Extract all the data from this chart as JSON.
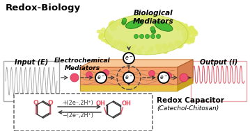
{
  "title": "Redox-Biology",
  "bio_mediators_label": "Biological\nMediators",
  "input_label": "Input (E)",
  "output_label": "Output (i)",
  "electrochem_label": "Electrochemical\nMediators",
  "redox_cap_line1": "Redox Capacitor",
  "redox_cap_line2": "(Catechol-Chitosan)",
  "reaction_top": "+(2e⁻,2H⁺)",
  "reaction_bot": "−(2e⁻,2H⁺)",
  "bg_color": "#ffffff",
  "slab_top_color": "#f5b07a",
  "slab_front_color": "#f4a06a",
  "slab_right_color": "#d88050",
  "slab_gold_color": "#e8c040",
  "slab_gold_right": "#c8a020",
  "input_wave_color": "#999999",
  "output_wave_color": "#e05060",
  "cloud_color": "#e8ee80",
  "cloud_edge": "#c8d840",
  "bacteria_color": "#44bb33",
  "bacteria_edge": "#227722",
  "mediator_color": "#f05070",
  "electron_bg": "#ffffff",
  "electron_edge": "#222222",
  "catechol_color": "#e85060",
  "arrow_color": "#333333",
  "box_edge": "#555555"
}
